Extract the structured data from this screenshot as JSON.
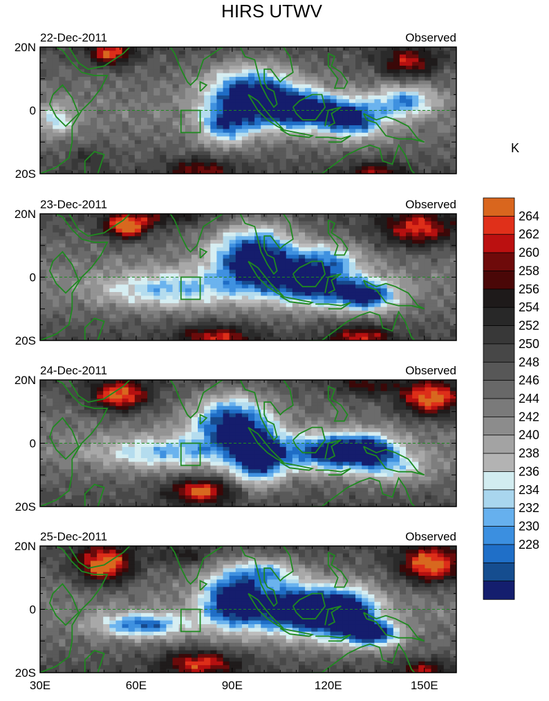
{
  "chart_data": {
    "type": "heatmap",
    "title": "HIRS UTWV",
    "colorbar_unit": "K",
    "colorbar": {
      "levels": [
        228,
        230,
        232,
        234,
        236,
        238,
        240,
        242,
        244,
        246,
        248,
        250,
        252,
        254,
        256,
        258,
        260,
        262,
        264
      ],
      "colors": [
        "#141e6e",
        "#154d8f",
        "#1f6fc8",
        "#3b8fe0",
        "#66b0ee",
        "#a9d6ee",
        "#d2ecf0",
        "#b3b3b3",
        "#a3a3a3",
        "#8c8c8c",
        "#7a7a7a",
        "#686868",
        "#575757",
        "#474747",
        "#383838",
        "#282828",
        "#1e1a1a",
        "#4a0707",
        "#6e0a0a",
        "#bb1010",
        "#e0301a",
        "#d9661e"
      ]
    },
    "xaxis": {
      "ticks": [
        "30E",
        "60E",
        "90E",
        "120E",
        "150E"
      ],
      "range": [
        30,
        160
      ]
    },
    "yaxis": {
      "ticks": [
        "20N",
        "0",
        "20S"
      ],
      "range": [
        -20,
        20
      ]
    },
    "panels": [
      {
        "date": "22-Dec-2011",
        "label": "Observed"
      },
      {
        "date": "23-Dec-2011",
        "label": "Observed"
      },
      {
        "date": "24-Dec-2011",
        "label": "Observed"
      },
      {
        "date": "25-Dec-2011",
        "label": "Observed"
      }
    ]
  }
}
